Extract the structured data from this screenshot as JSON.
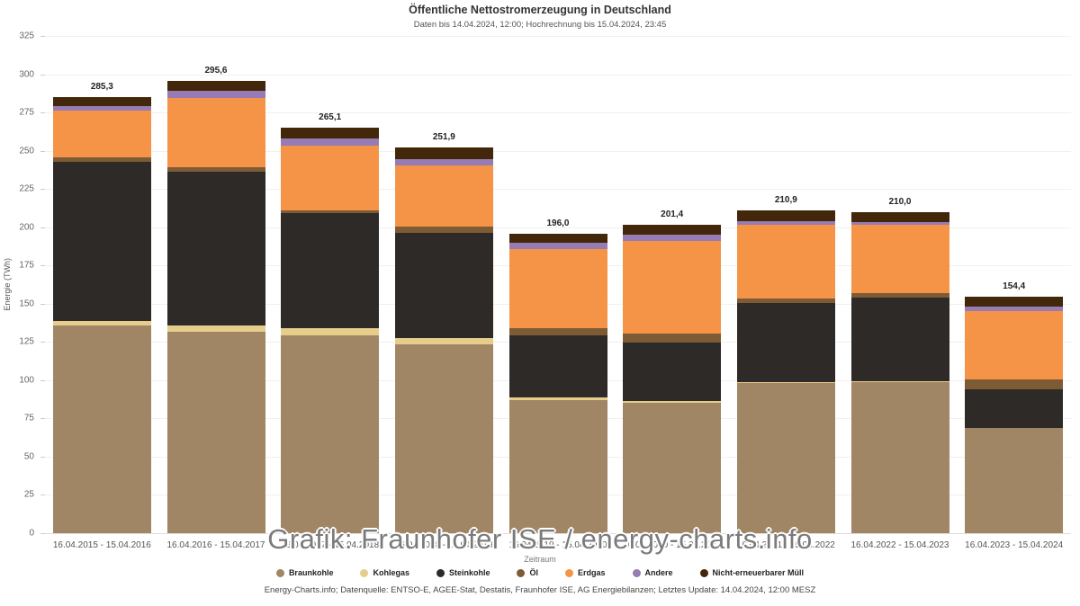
{
  "header": {
    "title": "Öffentliche Nettostromerzeugung in Deutschland",
    "subtitle": "Daten bis 14.04.2024, 12:00; Hochrechnung bis 15.04.2024, 23:45"
  },
  "watermark": "Grafik: Fraunhofer ISE / energy-charts.info",
  "footer": "Energy-Charts.info; Datenquelle: ENTSO-E, AGEE-Stat, Destatis, Fraunhofer ISE, AG Energiebilanzen; Letztes Update: 14.04.2024, 12:00 MESZ",
  "chart_data": {
    "type": "bar",
    "stacked": true,
    "title": "Öffentliche Nettostromerzeugung in Deutschland",
    "subtitle": "Daten bis 14.04.2024, 12:00; Hochrechnung bis 15.04.2024, 23:45",
    "xlabel": "Zeitraum",
    "ylabel": "Energie (TWh)",
    "ylim": [
      0,
      325
    ],
    "ytick_step": 25,
    "grid": true,
    "legend_position": "bottom",
    "categories": [
      "16.04.2015 - 15.04.2016",
      "16.04.2016 - 15.04.2017",
      "16.04.2017 - 15.04.2018",
      "16.04.2018 - 15.04.2019",
      "16.04.2019 - 15.04.2020",
      "16.04.2020 - 15.04.2021",
      "16.04.2021 - 15.04.2022",
      "16.04.2022 - 15.04.2023",
      "16.04.2023 - 15.04.2024"
    ],
    "totals": [
      285.3,
      295.6,
      265.1,
      251.9,
      196.0,
      201.4,
      210.9,
      210.0,
      154.4
    ],
    "total_labels": [
      "285,3",
      "295,6",
      "265,1",
      "251,9",
      "196,0",
      "201,4",
      "210,9",
      "210,0",
      "154,4"
    ],
    "series": [
      {
        "name": "Braunkohle",
        "color": "#a08664",
        "values": [
          135.5,
          131.5,
          129.5,
          123.5,
          87.0,
          85.0,
          98.0,
          99.0,
          68.5
        ]
      },
      {
        "name": "Kohlegas",
        "color": "#e6cd8c",
        "values": [
          3.0,
          4.5,
          4.5,
          4.0,
          2.0,
          1.5,
          1.0,
          0.5,
          0.3
        ]
      },
      {
        "name": "Steinkohle",
        "color": "#2d2a28",
        "values": [
          104.5,
          100.0,
          75.0,
          69.0,
          40.5,
          38.0,
          51.5,
          54.5,
          25.5
        ]
      },
      {
        "name": "Öl",
        "color": "#7d5b35",
        "values": [
          2.5,
          3.0,
          2.0,
          4.0,
          4.7,
          5.9,
          3.0,
          3.0,
          6.0
        ]
      },
      {
        "name": "Erdgas",
        "color": "#f59446",
        "values": [
          31.0,
          45.5,
          42.5,
          40.0,
          51.5,
          60.5,
          48.0,
          44.5,
          45.0
        ]
      },
      {
        "name": "Andere",
        "color": "#967bb4",
        "values": [
          2.5,
          4.8,
          4.8,
          4.2,
          4.2,
          4.2,
          2.5,
          2.0,
          2.6
        ]
      },
      {
        "name": "Nicht-erneuerbarer Müll",
        "color": "#42270a",
        "values": [
          6.3,
          6.3,
          6.8,
          7.2,
          6.1,
          6.3,
          6.9,
          6.5,
          6.5
        ]
      }
    ]
  }
}
